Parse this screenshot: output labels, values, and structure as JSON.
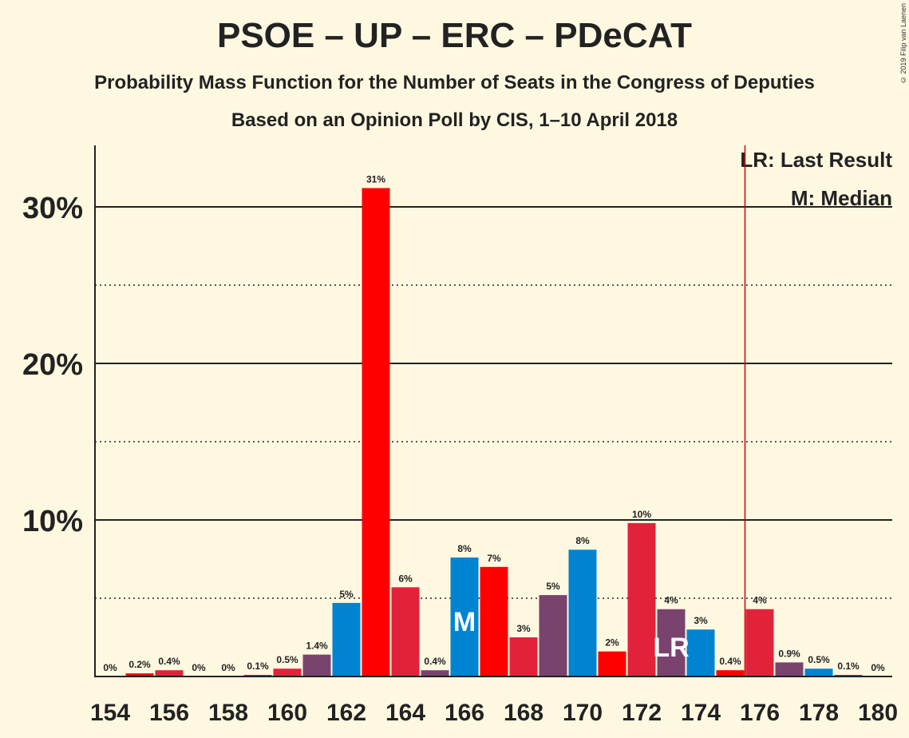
{
  "title": "PSOE – UP – ERC – PDeCAT",
  "subtitle": "Probability Mass Function for the Number of Seats in the Congress of Deputies",
  "subtitle2": "Based on an Opinion Poll by CIS, 1–10 April 2018",
  "copyright": "© 2019 Filip van Laenen",
  "legend": {
    "last_result": "LR: Last Result",
    "median": "M: Median"
  },
  "chart_data": {
    "type": "bar",
    "x": [
      154,
      155,
      156,
      157,
      158,
      159,
      160,
      161,
      162,
      163,
      164,
      165,
      166,
      167,
      168,
      169,
      170,
      171,
      172,
      173,
      174,
      175,
      176,
      177,
      178,
      179,
      180
    ],
    "values": [
      0,
      0.2,
      0.4,
      0,
      0,
      0.1,
      0.5,
      1.4,
      4.7,
      31.2,
      5.7,
      0.4,
      7.6,
      7.0,
      2.5,
      5.2,
      8.1,
      1.6,
      9.8,
      4.3,
      3.0,
      0.4,
      4.3,
      0.9,
      0.5,
      0.1,
      0
    ],
    "labels": [
      "0%",
      "0.2%",
      "0.4%",
      "0%",
      "0%",
      "0.1%",
      "0.5%",
      "1.4%",
      "5%",
      "31%",
      "6%",
      "0.4%",
      "8%",
      "7%",
      "3%",
      "5%",
      "8%",
      "2%",
      "10%",
      "4%",
      "3%",
      "0.4%",
      "4%",
      "0.9%",
      "0.5%",
      "0.1%",
      "0%"
    ],
    "xtick_labels": [
      "154",
      "156",
      "158",
      "160",
      "162",
      "164",
      "166",
      "168",
      "170",
      "172",
      "174",
      "176",
      "178",
      "180"
    ],
    "yticks": [
      {
        "value": 10,
        "label": "10%"
      },
      {
        "value": 20,
        "label": "20%"
      },
      {
        "value": 30,
        "label": "30%"
      }
    ],
    "ylim": [
      0,
      33.5
    ],
    "median_seat": 166,
    "median_marker": "M",
    "last_result_seat": 173,
    "last_result_marker": "LR",
    "last_result_line_seat": 175.5,
    "grid": "major solid every 10%, minor dotted every 5%",
    "colors": {
      "blue": "#0084d1",
      "red": "#ff0000",
      "pink": "#e1223a",
      "purple": "#7a436f",
      "lr_line": "#cc0000"
    },
    "color_cycle": [
      "blue",
      "red",
      "pink",
      "purple"
    ]
  }
}
